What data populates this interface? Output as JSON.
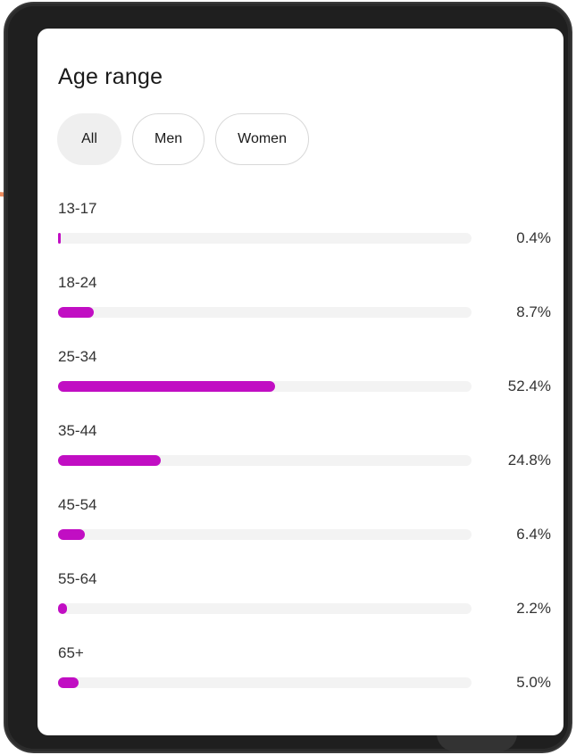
{
  "card": {
    "title": "Age range"
  },
  "filters": [
    {
      "label": "All",
      "active": true
    },
    {
      "label": "Men",
      "active": false
    },
    {
      "label": "Women",
      "active": false
    }
  ],
  "colors": {
    "bar_fill": "#c10ec3",
    "track": "#f3f3f3",
    "active_chip": "#efefef"
  },
  "age_ranges": [
    {
      "label": "13-17",
      "value_text": "0.4%",
      "percent": 0.4
    },
    {
      "label": "18-24",
      "value_text": "8.7%",
      "percent": 8.7
    },
    {
      "label": "25-34",
      "value_text": "52.4%",
      "percent": 52.4
    },
    {
      "label": "35-44",
      "value_text": "24.8%",
      "percent": 24.8
    },
    {
      "label": "45-54",
      "value_text": "6.4%",
      "percent": 6.4
    },
    {
      "label": "55-64",
      "value_text": "2.2%",
      "percent": 2.2
    },
    {
      "label": "65+",
      "value_text": "5.0%",
      "percent": 5.0
    }
  ]
}
